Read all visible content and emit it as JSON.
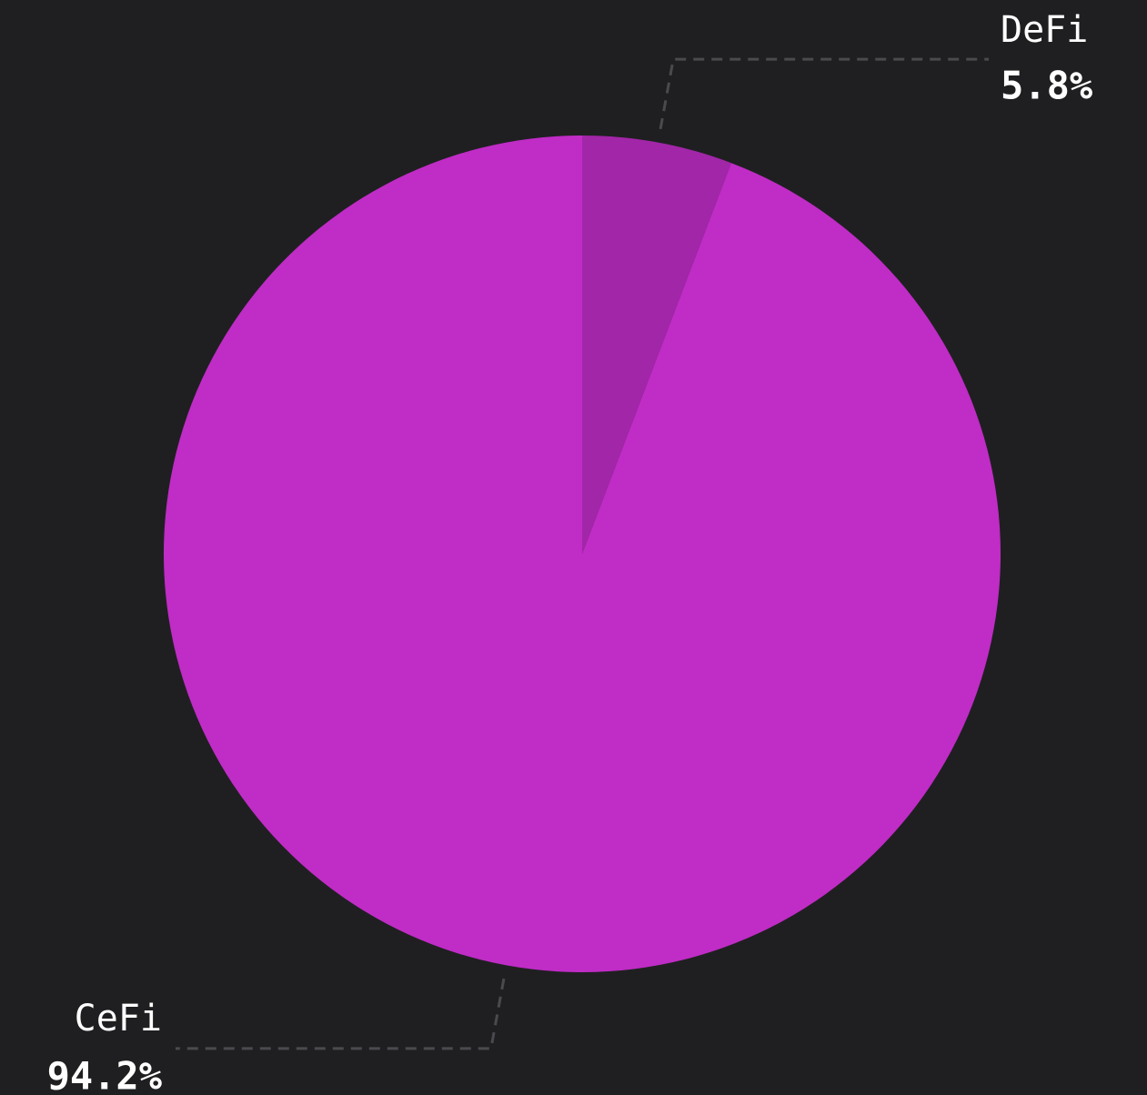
{
  "chart_data": {
    "type": "pie",
    "categories": [
      "DeFi",
      "CeFi"
    ],
    "values": [
      5.8,
      94.2
    ],
    "value_labels": [
      "5.8%",
      "94.2%"
    ],
    "colors": [
      "#a226a8",
      "#c02cc6"
    ]
  }
}
